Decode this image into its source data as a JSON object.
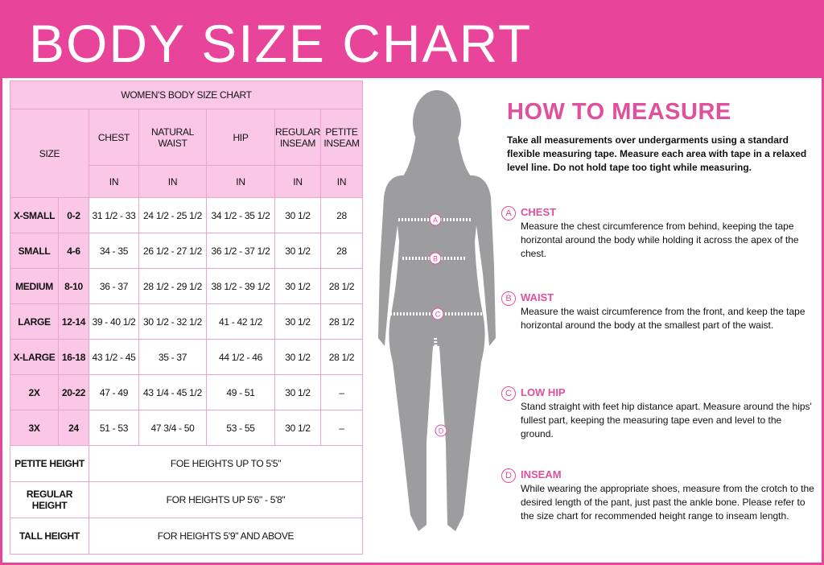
{
  "header": {
    "title": "BODY SIZE CHART"
  },
  "table": {
    "title": "WOMEN'S BODY SIZE CHART",
    "size_header": "SIZE",
    "columns": [
      "CHEST",
      "NATURAL WAIST",
      "HIP",
      "REGULAR INSEAM",
      "PETITE INSEAM"
    ],
    "units": [
      "IN",
      "IN",
      "IN",
      "IN",
      "IN"
    ],
    "rows": [
      [
        "X-SMALL",
        "0-2",
        "31 1/2 - 33",
        "24 1/2 - 25 1/2",
        "34 1/2 - 35 1/2",
        "30 1/2",
        "28"
      ],
      [
        "SMALL",
        "4-6",
        "34 - 35",
        "26 1/2 - 27 1/2",
        "36 1/2 - 37 1/2",
        "30 1/2",
        "28"
      ],
      [
        "MEDIUM",
        "8-10",
        "36 - 37",
        "28 1/2 - 29 1/2",
        "38 1/2 - 39 1/2",
        "30 1/2",
        "28 1/2"
      ],
      [
        "LARGE",
        "12-14",
        "39 - 40 1/2",
        "30 1/2 - 32 1/2",
        "41 - 42 1/2",
        "30 1/2",
        "28 1/2"
      ],
      [
        "X-LARGE",
        "16-18",
        "43 1/2 - 45",
        "35 - 37",
        "44 1/2 - 46",
        "30 1/2",
        "28 1/2"
      ],
      [
        "2X",
        "20-22",
        "47 - 49",
        "43 1/4 - 45 1/2",
        "49 - 51",
        "30 1/2",
        "–"
      ],
      [
        "3X",
        "24",
        "51 - 53",
        "47 3/4 - 50",
        "53 - 55",
        "30 1/2",
        "–"
      ]
    ],
    "heights": [
      [
        "PETITE HEIGHT",
        "FOE HEIGHTS UP TO 5'5\""
      ],
      [
        "REGULAR HEIGHT",
        "FOR HEIGHTS UP 5'6\" - 5'8\""
      ],
      [
        "TALL HEIGHT",
        "FOR HEIGHTS 5'9\" AND ABOVE"
      ]
    ]
  },
  "figure": {
    "markers": [
      "A",
      "B",
      "C",
      "D"
    ]
  },
  "guide": {
    "title": "HOW TO MEASURE",
    "intro": "Take all measurements over undergarments using a standard flexible measuring tape. Measure each area with tape in a relaxed level line. Do not hold tape too tight while measuring.",
    "sections": [
      {
        "marker": "A",
        "title": "CHEST",
        "text": "Measure the chest circumference from behind, keeping the tape horizontal around the body while holding it across the apex of the chest."
      },
      {
        "marker": "B",
        "title": "WAIST",
        "text": "Measure the waist circumference from the front, and keep the tape horizontal around the body at the smallest part of the waist."
      },
      {
        "marker": "C",
        "title": "LOW HIP",
        "text": "Stand straight with feet hip distance apart. Measure around the hips' fullest part, keeping the measuring tape even and level to the ground."
      },
      {
        "marker": "D",
        "title": "INSEAM",
        "text": "While wearing the appropriate shoes, measure from the crotch to the desired length of the pant, just past the ankle bone. Please refer to the size chart for recommended height range to inseam length."
      }
    ]
  }
}
